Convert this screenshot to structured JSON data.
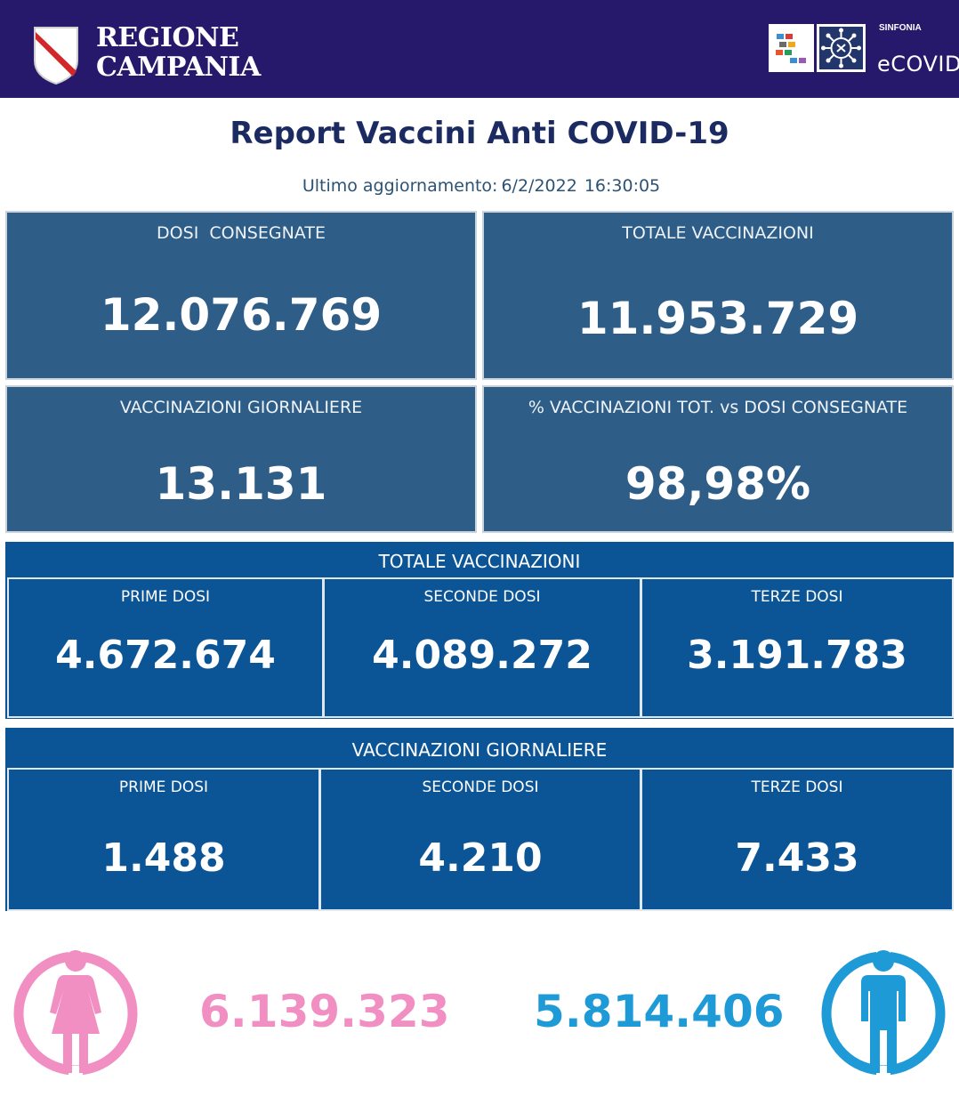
{
  "header": {
    "logo_line1": "REGIONE",
    "logo_line2": "CAMPANIA",
    "sinfonia_label": "SINFONIA",
    "ecovid_label": "eCOVID"
  },
  "report": {
    "title": "Report Vaccini Anti COVID-19",
    "updated_label": "Ultimo aggiornamento:",
    "updated_date": "6/2/2022",
    "updated_time": "16:30:05"
  },
  "cards": {
    "dosi_consegnate": {
      "label": "DOSI  CONSEGNATE",
      "value": "12.076.769"
    },
    "totale_vaccinazioni": {
      "label": "TOTALE VACCINAZIONI",
      "value": "11.953.729"
    },
    "vaccinazioni_giornaliere": {
      "label": "VACCINAZIONI GIORNALIERE",
      "value": "13.131"
    },
    "percentuale": {
      "label": "% VACCINAZIONI TOT. vs DOSI CONSEGNATE",
      "value": "98,98%"
    }
  },
  "totale_panel": {
    "title": "TOTALE VACCINAZIONI",
    "cells": [
      {
        "label": "PRIME DOSI",
        "value": "4.672.674"
      },
      {
        "label": "SECONDE DOSI",
        "value": "4.089.272"
      },
      {
        "label": "TERZE DOSI",
        "value": "3.191.783"
      }
    ]
  },
  "giornaliere_panel": {
    "title": "VACCINAZIONI GIORNALIERE",
    "cells": [
      {
        "label": "PRIME DOSI",
        "value": "1.488"
      },
      {
        "label": "SECONDE DOSI",
        "value": "4.210"
      },
      {
        "label": "TERZE DOSI",
        "value": "7.433"
      }
    ]
  },
  "gender": {
    "female_value": "6.139.323",
    "male_value": "5.814.406",
    "female_color": "#f18fc3",
    "male_color": "#1e9ad6",
    "female_icon": "female-icon",
    "male_icon": "male-icon"
  },
  "colors": {
    "header_bg": "#26186a",
    "card_bg": "#2e5d88",
    "panel_bg": "#0b5597",
    "title_color": "#1b2b62"
  }
}
